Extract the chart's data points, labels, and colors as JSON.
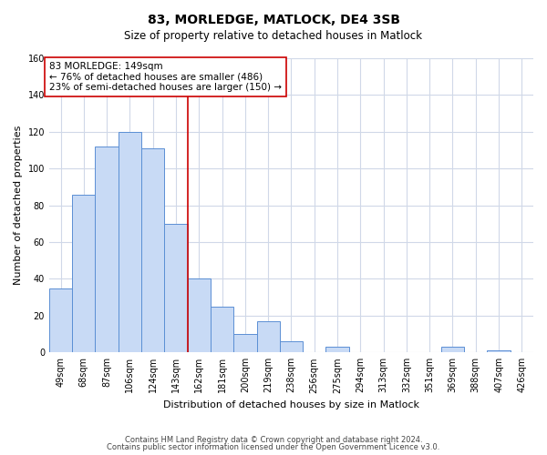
{
  "title": "83, MORLEDGE, MATLOCK, DE4 3SB",
  "subtitle": "Size of property relative to detached houses in Matlock",
  "xlabel": "Distribution of detached houses by size in Matlock",
  "ylabel": "Number of detached properties",
  "bar_labels": [
    "49sqm",
    "68sqm",
    "87sqm",
    "106sqm",
    "124sqm",
    "143sqm",
    "162sqm",
    "181sqm",
    "200sqm",
    "219sqm",
    "238sqm",
    "256sqm",
    "275sqm",
    "294sqm",
    "313sqm",
    "332sqm",
    "351sqm",
    "369sqm",
    "388sqm",
    "407sqm",
    "426sqm"
  ],
  "bar_heights": [
    35,
    86,
    112,
    120,
    111,
    70,
    40,
    25,
    10,
    17,
    6,
    0,
    3,
    0,
    0,
    0,
    0,
    3,
    0,
    1,
    0
  ],
  "bar_color": "#c8daf5",
  "bar_edge_color": "#5b8fd4",
  "vline_x_index": 5.5,
  "vline_color": "#cc0000",
  "annotation_line1": "83 MORLEDGE: 149sqm",
  "annotation_line2": "← 76% of detached houses are smaller (486)",
  "annotation_line3": "23% of semi-detached houses are larger (150) →",
  "annotation_box_edge": "#cc0000",
  "ylim": [
    0,
    160
  ],
  "yticks": [
    0,
    20,
    40,
    60,
    80,
    100,
    120,
    140,
    160
  ],
  "footer_line1": "Contains HM Land Registry data © Crown copyright and database right 2024.",
  "footer_line2": "Contains public sector information licensed under the Open Government Licence v3.0.",
  "background_color": "#ffffff",
  "grid_color": "#d0d8e8",
  "title_fontsize": 10,
  "subtitle_fontsize": 8.5,
  "tick_fontsize": 7,
  "axis_label_fontsize": 8,
  "footer_fontsize": 6,
  "annotation_fontsize": 7.5
}
